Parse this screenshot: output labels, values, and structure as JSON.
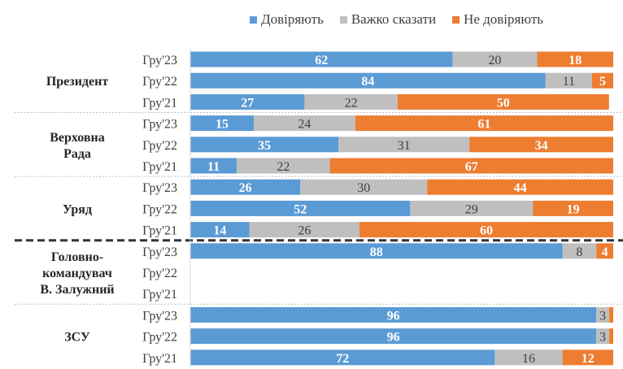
{
  "chart_data": {
    "type": "bar",
    "orientation": "horizontal-stacked-100",
    "title": "",
    "xlim": [
      0,
      100
    ],
    "legend": {
      "placement": "top",
      "entries": [
        "Довіряють",
        "Важко сказати",
        "Не  довіряють"
      ]
    },
    "colors": [
      "#5B9BD5",
      "#BFBFBF",
      "#ED7D31"
    ],
    "groups": [
      {
        "name": "Президент",
        "rows": [
          {
            "label": "Гру'23",
            "values": [
              62,
              20,
              18
            ]
          },
          {
            "label": "Гру'22",
            "values": [
              84,
              11,
              5
            ]
          },
          {
            "label": "Гру'21",
            "values": [
              27,
              22,
              50
            ]
          }
        ]
      },
      {
        "name": "Верховна Рада",
        "rows": [
          {
            "label": "Гру'23",
            "values": [
              15,
              24,
              61
            ]
          },
          {
            "label": "Гру'22",
            "values": [
              35,
              31,
              34
            ]
          },
          {
            "label": "Гру'21",
            "values": [
              11,
              22,
              67
            ]
          }
        ]
      },
      {
        "name": "Уряд",
        "rows": [
          {
            "label": "Гру'23",
            "values": [
              26,
              30,
              44
            ]
          },
          {
            "label": "Гру'22",
            "values": [
              52,
              29,
              19
            ]
          },
          {
            "label": "Гру'21",
            "values": [
              14,
              26,
              60
            ]
          }
        ]
      },
      {
        "name": "Головно-командувач В. Залужний",
        "rows": [
          {
            "label": "Гру'23",
            "values": [
              88,
              8,
              4
            ]
          },
          {
            "label": "Гру'22",
            "values": null
          },
          {
            "label": "Гру'21",
            "values": null
          }
        ]
      },
      {
        "name": "ЗСУ",
        "rows": [
          {
            "label": "Гру'23",
            "values": [
              96,
              3,
              1
            ]
          },
          {
            "label": "Гру'22",
            "values": [
              96,
              3,
              1
            ]
          },
          {
            "label": "Гру'21",
            "values": [
              72,
              16,
              12
            ]
          }
        ]
      }
    ]
  },
  "group_label_lines": [
    [
      "Президент"
    ],
    [
      "Верховна",
      "Рада"
    ],
    [
      "Уряд"
    ],
    [
      "Головно-",
      "командувач",
      "В. Залужний"
    ],
    [
      "ЗСУ"
    ]
  ]
}
